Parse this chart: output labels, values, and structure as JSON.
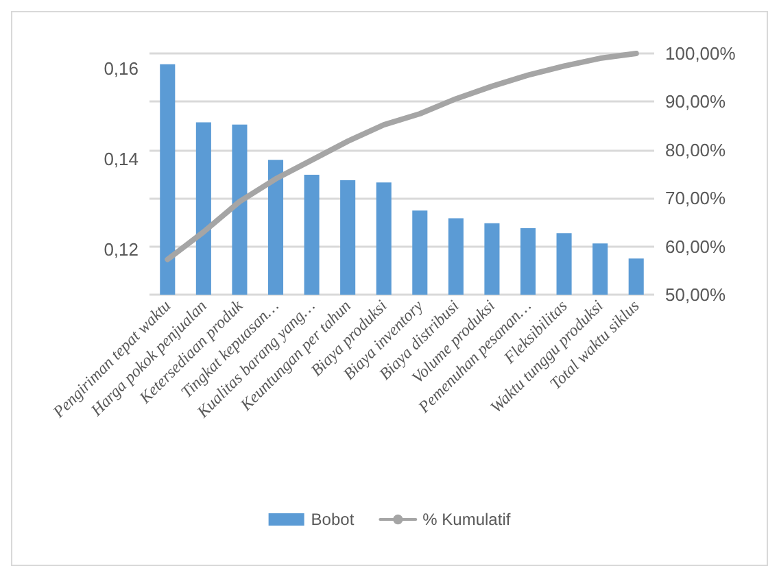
{
  "chart_data": {
    "type": "bar",
    "categories": [
      "Pengiriman tepat waktu",
      "Harga pokok penjualan",
      "Ketersediaan produk",
      "Tingkat kepuasan…",
      "Kualitas barang yang…",
      "Keuntungan per tahun",
      "Biaya produksi",
      "Biaya inventory",
      "Biaya distribusi",
      "Volume produksi",
      "Pemenuhan pesanan…",
      "Fleksibilitas",
      "Waktu tunggu produksi",
      "Total waktu siklus"
    ],
    "series": [
      {
        "name": "Bobot",
        "color": "#5b9bd5",
        "values": [
          0.1609,
          0.1481,
          0.1476,
          0.1398,
          0.1365,
          0.1353,
          0.1348,
          0.1286,
          0.1269,
          0.1258,
          0.1247,
          0.1236,
          0.1213,
          0.118
        ]
      },
      {
        "name": "% Kumulatif",
        "type": "line",
        "axis": "y2",
        "color": "#a5a5a5",
        "values": [
          57.3,
          63.0,
          69.3,
          74.0,
          77.9,
          81.8,
          85.2,
          87.5,
          90.6,
          93.2,
          95.5,
          97.4,
          99.0,
          100
        ]
      }
    ],
    "ylim": [
      0.11,
      0.1633
    ],
    "yticks": [
      {
        "value": 0.12,
        "label": "0,12"
      },
      {
        "value": 0.14,
        "label": "0,14"
      },
      {
        "value": 0.16,
        "label": "0,16"
      }
    ],
    "y2lim": [
      50,
      100
    ],
    "y2ticks": [
      {
        "value": 50,
        "label": "50,00%"
      },
      {
        "value": 60,
        "label": "60,00%"
      },
      {
        "value": 70,
        "label": "70,00%"
      },
      {
        "value": 80,
        "label": "80,00%"
      },
      {
        "value": 90,
        "label": "90,00%"
      },
      {
        "value": 100,
        "label": "100,00%"
      }
    ],
    "grid": true,
    "legend": "bottom",
    "marker": "none"
  }
}
